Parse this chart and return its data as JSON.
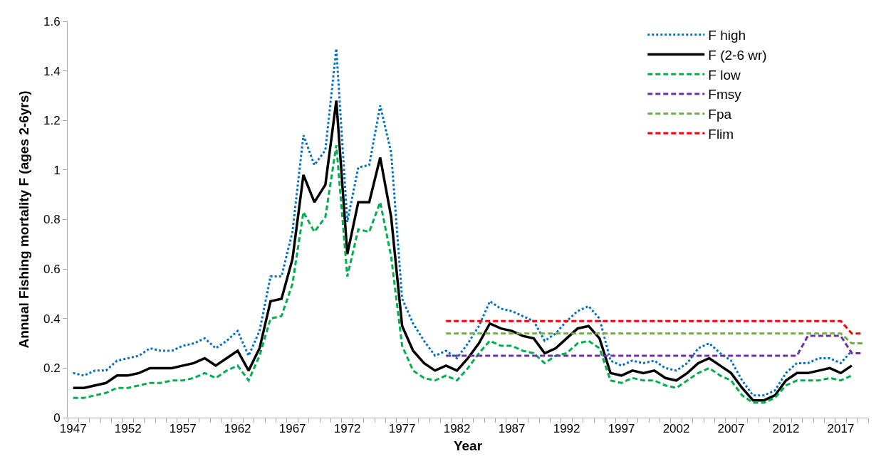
{
  "chart_data": {
    "type": "line",
    "xlabel": "Year",
    "ylabel": "Annual Fishing mortality F (ages 2-6yrs)",
    "xlim": [
      1946.5,
      2019.5
    ],
    "xticks": [
      1947,
      1952,
      1957,
      1962,
      1967,
      1972,
      1977,
      1982,
      1987,
      1992,
      1997,
      2002,
      2007,
      2012,
      2017
    ],
    "ylim": [
      0,
      1.6
    ],
    "yticks": [
      0,
      0.2,
      0.4,
      0.6,
      0.8,
      1,
      1.2,
      1.4,
      1.6
    ],
    "legend": "top right",
    "marker": "none",
    "series": [
      {
        "name": "F high",
        "color": "#0070c0",
        "line_style": "dotted",
        "x": [
          1947,
          1948,
          1949,
          1950,
          1951,
          1952,
          1953,
          1954,
          1955,
          1956,
          1957,
          1958,
          1959,
          1960,
          1961,
          1962,
          1963,
          1964,
          1965,
          1966,
          1967,
          1968,
          1969,
          1970,
          1971,
          1972,
          1973,
          1974,
          1975,
          1976,
          1977,
          1978,
          1979,
          1980,
          1981,
          1982,
          1983,
          1984,
          1985,
          1986,
          1987,
          1988,
          1989,
          1990,
          1991,
          1992,
          1993,
          1994,
          1995,
          1996,
          1997,
          1998,
          1999,
          2000,
          2001,
          2002,
          2003,
          2004,
          2005,
          2006,
          2007,
          2008,
          2009,
          2010,
          2011,
          2012,
          2013,
          2014,
          2015,
          2016,
          2017,
          2018
        ],
        "values": [
          0.18,
          0.17,
          0.19,
          0.19,
          0.23,
          0.24,
          0.25,
          0.28,
          0.27,
          0.27,
          0.29,
          0.3,
          0.32,
          0.28,
          0.31,
          0.35,
          0.25,
          0.35,
          0.57,
          0.57,
          0.75,
          1.14,
          1.02,
          1.08,
          1.49,
          0.79,
          1.01,
          1.02,
          1.26,
          1.07,
          0.48,
          0.38,
          0.31,
          0.25,
          0.27,
          0.24,
          0.3,
          0.37,
          0.47,
          0.44,
          0.43,
          0.41,
          0.39,
          0.31,
          0.34,
          0.39,
          0.43,
          0.45,
          0.4,
          0.23,
          0.21,
          0.23,
          0.22,
          0.23,
          0.2,
          0.19,
          0.22,
          0.28,
          0.3,
          0.26,
          0.23,
          0.15,
          0.09,
          0.09,
          0.11,
          0.18,
          0.22,
          0.22,
          0.24,
          0.24,
          0.22,
          0.27
        ]
      },
      {
        "name": "F (2-6 wr)",
        "color": "#000000",
        "line_style": "solid",
        "x": [
          1947,
          1948,
          1949,
          1950,
          1951,
          1952,
          1953,
          1954,
          1955,
          1956,
          1957,
          1958,
          1959,
          1960,
          1961,
          1962,
          1963,
          1964,
          1965,
          1966,
          1967,
          1968,
          1969,
          1970,
          1971,
          1972,
          1973,
          1974,
          1975,
          1976,
          1977,
          1978,
          1979,
          1980,
          1981,
          1982,
          1983,
          1984,
          1985,
          1986,
          1987,
          1988,
          1989,
          1990,
          1991,
          1992,
          1993,
          1994,
          1995,
          1996,
          1997,
          1998,
          1999,
          2000,
          2001,
          2002,
          2003,
          2004,
          2005,
          2006,
          2007,
          2008,
          2009,
          2010,
          2011,
          2012,
          2013,
          2014,
          2015,
          2016,
          2017,
          2018
        ],
        "values": [
          0.12,
          0.12,
          0.13,
          0.14,
          0.17,
          0.17,
          0.18,
          0.2,
          0.2,
          0.2,
          0.21,
          0.22,
          0.24,
          0.21,
          0.24,
          0.27,
          0.19,
          0.28,
          0.47,
          0.48,
          0.64,
          0.98,
          0.87,
          0.94,
          1.28,
          0.66,
          0.87,
          0.87,
          1.05,
          0.81,
          0.37,
          0.27,
          0.22,
          0.19,
          0.21,
          0.19,
          0.24,
          0.3,
          0.38,
          0.36,
          0.35,
          0.33,
          0.32,
          0.26,
          0.28,
          0.32,
          0.36,
          0.37,
          0.32,
          0.18,
          0.17,
          0.19,
          0.18,
          0.19,
          0.16,
          0.15,
          0.18,
          0.22,
          0.24,
          0.21,
          0.18,
          0.12,
          0.07,
          0.07,
          0.09,
          0.15,
          0.18,
          0.18,
          0.19,
          0.2,
          0.18,
          0.21
        ]
      },
      {
        "name": "F low",
        "color": "#00b050",
        "line_style": "dashed",
        "x": [
          1947,
          1948,
          1949,
          1950,
          1951,
          1952,
          1953,
          1954,
          1955,
          1956,
          1957,
          1958,
          1959,
          1960,
          1961,
          1962,
          1963,
          1964,
          1965,
          1966,
          1967,
          1968,
          1969,
          1970,
          1971,
          1972,
          1973,
          1974,
          1975,
          1976,
          1977,
          1978,
          1979,
          1980,
          1981,
          1982,
          1983,
          1984,
          1985,
          1986,
          1987,
          1988,
          1989,
          1990,
          1991,
          1992,
          1993,
          1994,
          1995,
          1996,
          1997,
          1998,
          1999,
          2000,
          2001,
          2002,
          2003,
          2004,
          2005,
          2006,
          2007,
          2008,
          2009,
          2010,
          2011,
          2012,
          2013,
          2014,
          2015,
          2016,
          2017,
          2018
        ],
        "values": [
          0.08,
          0.08,
          0.09,
          0.1,
          0.12,
          0.12,
          0.13,
          0.14,
          0.14,
          0.15,
          0.15,
          0.16,
          0.18,
          0.16,
          0.19,
          0.21,
          0.15,
          0.25,
          0.4,
          0.41,
          0.54,
          0.83,
          0.75,
          0.81,
          1.1,
          0.57,
          0.76,
          0.75,
          0.87,
          0.65,
          0.29,
          0.19,
          0.16,
          0.15,
          0.17,
          0.15,
          0.2,
          0.26,
          0.31,
          0.29,
          0.29,
          0.27,
          0.26,
          0.22,
          0.25,
          0.26,
          0.3,
          0.31,
          0.28,
          0.15,
          0.14,
          0.16,
          0.15,
          0.15,
          0.13,
          0.12,
          0.15,
          0.18,
          0.2,
          0.17,
          0.15,
          0.09,
          0.06,
          0.06,
          0.08,
          0.13,
          0.15,
          0.15,
          0.15,
          0.16,
          0.15,
          0.17
        ]
      },
      {
        "name": "Fmsy",
        "color": "#7030a0",
        "line_style": "dashed",
        "x": [
          1981,
          1982,
          1983,
          1984,
          1985,
          1986,
          1987,
          1988,
          1989,
          1990,
          1991,
          1992,
          1993,
          1994,
          1995,
          1996,
          1997,
          1998,
          1999,
          2000,
          2001,
          2002,
          2003,
          2004,
          2005,
          2006,
          2007,
          2008,
          2009,
          2010,
          2011,
          2012,
          2013,
          2014,
          2015,
          2016,
          2017,
          2018,
          2019
        ],
        "values": [
          0.25,
          0.25,
          0.25,
          0.25,
          0.25,
          0.25,
          0.25,
          0.25,
          0.25,
          0.25,
          0.25,
          0.25,
          0.25,
          0.25,
          0.25,
          0.25,
          0.25,
          0.25,
          0.25,
          0.25,
          0.25,
          0.25,
          0.25,
          0.25,
          0.25,
          0.25,
          0.25,
          0.25,
          0.25,
          0.25,
          0.25,
          0.25,
          0.25,
          0.33,
          0.33,
          0.33,
          0.33,
          0.26,
          0.26
        ]
      },
      {
        "name": "Fpa",
        "color": "#70ad47",
        "line_style": "dashed",
        "x": [
          1981,
          1982,
          1983,
          1984,
          1985,
          1986,
          1987,
          1988,
          1989,
          1990,
          1991,
          1992,
          1993,
          1994,
          1995,
          1996,
          1997,
          1998,
          1999,
          2000,
          2001,
          2002,
          2003,
          2004,
          2005,
          2006,
          2007,
          2008,
          2009,
          2010,
          2011,
          2012,
          2013,
          2014,
          2015,
          2016,
          2017,
          2018,
          2019
        ],
        "values": [
          0.34,
          0.34,
          0.34,
          0.34,
          0.34,
          0.34,
          0.34,
          0.34,
          0.34,
          0.34,
          0.34,
          0.34,
          0.34,
          0.34,
          0.34,
          0.34,
          0.34,
          0.34,
          0.34,
          0.34,
          0.34,
          0.34,
          0.34,
          0.34,
          0.34,
          0.34,
          0.34,
          0.34,
          0.34,
          0.34,
          0.34,
          0.34,
          0.34,
          0.34,
          0.34,
          0.34,
          0.34,
          0.3,
          0.3
        ]
      },
      {
        "name": "Flim",
        "color": "#ff0000",
        "line_style": "dashed",
        "x": [
          1981,
          1982,
          1983,
          1984,
          1985,
          1986,
          1987,
          1988,
          1989,
          1990,
          1991,
          1992,
          1993,
          1994,
          1995,
          1996,
          1997,
          1998,
          1999,
          2000,
          2001,
          2002,
          2003,
          2004,
          2005,
          2006,
          2007,
          2008,
          2009,
          2010,
          2011,
          2012,
          2013,
          2014,
          2015,
          2016,
          2017,
          2018,
          2019
        ],
        "values": [
          0.39,
          0.39,
          0.39,
          0.39,
          0.39,
          0.39,
          0.39,
          0.39,
          0.39,
          0.39,
          0.39,
          0.39,
          0.39,
          0.39,
          0.39,
          0.39,
          0.39,
          0.39,
          0.39,
          0.39,
          0.39,
          0.39,
          0.39,
          0.39,
          0.39,
          0.39,
          0.39,
          0.39,
          0.39,
          0.39,
          0.39,
          0.39,
          0.39,
          0.39,
          0.39,
          0.39,
          0.39,
          0.34,
          0.34
        ]
      }
    ]
  }
}
